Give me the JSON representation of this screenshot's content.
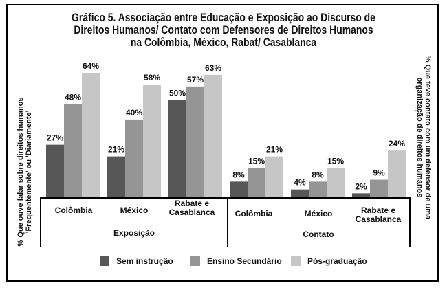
{
  "chart_data": {
    "type": "bar",
    "title_lines": [
      "Gráfico 5. Associação entre Educação e Exposição ao Discurso de",
      "Direitos Humanos/ Contato com Defensores de Direitos Humanos",
      "na Colômbia, México, Rabat/ Casablanca"
    ],
    "ylabel_left": [
      "% Que ouve falar sobre direitos humanos",
      "'Frequentemente' ou 'Diariamente'"
    ],
    "ylabel_right": [
      "% Que teve contato com um defensor de uma",
      "organização de direitos humanos"
    ],
    "ylim": [
      0,
      70
    ],
    "grid": false,
    "legend_position": "bottom",
    "panels": [
      {
        "name": "Exposição",
        "categories": [
          "Colômbia",
          "México",
          "Rabate e Casablanca"
        ],
        "series": [
          {
            "name": "Sem instrução",
            "values": [
              27,
              21,
              50
            ]
          },
          {
            "name": "Ensino Secundário",
            "values": [
              48,
              40,
              57
            ]
          },
          {
            "name": "Pós-graduação",
            "values": [
              64,
              58,
              63
            ]
          }
        ]
      },
      {
        "name": "Contato",
        "categories": [
          "Colômbia",
          "México",
          "Rabate e Casablanca"
        ],
        "series": [
          {
            "name": "Sem instrução",
            "values": [
              8,
              4,
              2
            ]
          },
          {
            "name": "Ensino Secundário",
            "values": [
              15,
              8,
              9
            ]
          },
          {
            "name": "Pós-graduação",
            "values": [
              21,
              15,
              24
            ]
          }
        ]
      }
    ],
    "series_colors": [
      "#575757",
      "#959595",
      "#c6c6c6"
    ],
    "value_suffix": "%"
  }
}
